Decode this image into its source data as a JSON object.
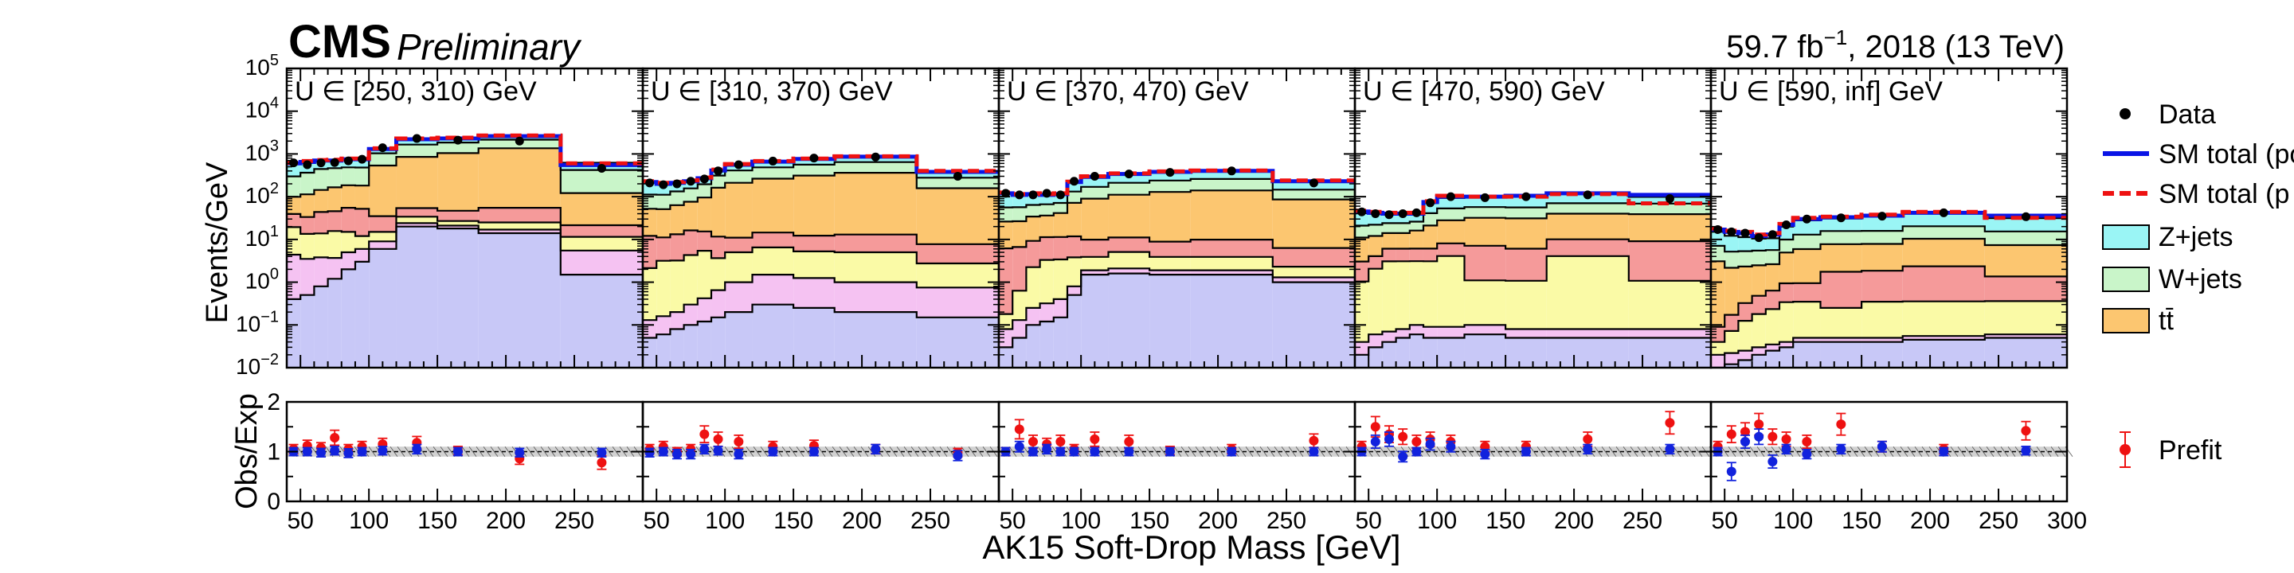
{
  "header": {
    "experiment": "CMS",
    "status": "Preliminary",
    "lumi_value": "59.7 fb",
    "lumi_exp": "−1",
    "lumi_rest": ", 2018 (13 TeV)"
  },
  "axes": {
    "ylabel_top": "Events/GeV",
    "ylabel_bottom": "Obs/Exp",
    "xlabel": "AK15 Soft-Drop Mass [GeV]",
    "top_yticks": [
      {
        "base": "10",
        "exp": "−2"
      },
      {
        "base": "10",
        "exp": "−1"
      },
      {
        "base": "10",
        "exp": "0"
      },
      {
        "base": "10",
        "exp": "1"
      },
      {
        "base": "10",
        "exp": "2"
      },
      {
        "base": "10",
        "exp": "3"
      },
      {
        "base": "10",
        "exp": "4"
      },
      {
        "base": "10",
        "exp": "5"
      }
    ],
    "ratio_yticks": [
      "0",
      "1",
      "2"
    ],
    "xticks_panel": [
      "50",
      "100",
      "150",
      "200",
      "250"
    ],
    "xticks_last": [
      "50",
      "100",
      "150",
      "200",
      "250",
      "300"
    ]
  },
  "legend": {
    "top": [
      {
        "label": "Data",
        "kind": "dot"
      },
      {
        "label": "SM total (po",
        "kind": "solid-line"
      },
      {
        "label": "SM total (p",
        "kind": "dashed-line"
      },
      {
        "label": "Z+jets",
        "kind": "box"
      },
      {
        "label": "W+jets",
        "kind": "box"
      },
      {
        "label": "tt̄",
        "kind": "box"
      }
    ],
    "bottom": [
      {
        "label": "Prefit",
        "kind": "errorbar"
      }
    ]
  },
  "colors": {
    "znunu": "#9af5f5",
    "wjets": "#c9f5c9",
    "ttbar": "#fcc670",
    "red_comp": "#f59a9a",
    "yellow_comp": "#fafaa6",
    "pink_comp": "#f5c2f2",
    "lavender_comp": "#c8c8f7",
    "postfit_line": "#0a14e6",
    "prefit_line": "#ee1111",
    "data": "#000000",
    "ratio_prefit": "#ee1111",
    "ratio_postfit": "#1122dd",
    "uncertainty_band": "#9a9a9a"
  },
  "chart_data": {
    "type": "bar",
    "subtype": "stacked-histogram-with-ratio",
    "y_scale": "log",
    "ylim": [
      0.01,
      100000
    ],
    "ratio_ylim": [
      0,
      2
    ],
    "xlim_panel": [
      40,
      300
    ],
    "bin_edges": [
      40,
      50,
      60,
      70,
      80,
      90,
      100,
      120,
      150,
      180,
      240,
      300
    ],
    "stack_order": [
      "lavender_comp",
      "pink_comp",
      "yellow_comp",
      "red_comp",
      "ttbar",
      "wjets",
      "znunu"
    ],
    "panels": [
      {
        "label": "U ∈ [250, 310) GeV",
        "stack": {
          "lavender_comp": [
            0.4,
            0.5,
            0.8,
            1.2,
            2,
            3,
            6,
            20,
            18,
            14,
            1.5
          ],
          "pink_comp": [
            4,
            3,
            3,
            2.5,
            3,
            3,
            3,
            4,
            3,
            3,
            4
          ],
          "yellow_comp": [
            15,
            10,
            10,
            12,
            10,
            6,
            6,
            10,
            6,
            8,
            6
          ],
          "red_comp": [
            20,
            20,
            30,
            30,
            40,
            40,
            20,
            20,
            20,
            30,
            10
          ],
          "ttbar": [
            60,
            80,
            100,
            120,
            130,
            130,
            500,
            800,
            1000,
            1300,
            100
          ],
          "wjets": [
            200,
            250,
            300,
            300,
            300,
            300,
            500,
            800,
            800,
            800,
            300
          ],
          "znunu": [
            300,
            250,
            250,
            200,
            230,
            230,
            300,
            500,
            400,
            500,
            200
          ]
        },
        "postfit_total": [
          600,
          650,
          700,
          700,
          750,
          750,
          1300,
          2200,
          2300,
          2600,
          550
        ],
        "prefit_total": [
          620,
          680,
          720,
          730,
          780,
          780,
          1350,
          2300,
          2400,
          2700,
          600
        ],
        "data": [
          620,
          560,
          620,
          630,
          690,
          750,
          1400,
          2300,
          2100,
          2000,
          460
        ],
        "ratio_prefit": [
          1.05,
          1.12,
          1.08,
          1.28,
          1.05,
          1.1,
          1.15,
          1.18,
          1.02,
          0.86,
          0.78
        ],
        "ratio_postfit": [
          1.0,
          1.0,
          0.98,
          1.02,
          0.97,
          1.0,
          1.02,
          1.05,
          1.0,
          0.98,
          0.98
        ]
      },
      {
        "label": "U ∈ [310, 370) GeV",
        "stack": {
          "lavender_comp": [
            0.05,
            0.06,
            0.08,
            0.1,
            0.12,
            0.15,
            0.2,
            0.3,
            0.25,
            0.2,
            0.15
          ],
          "pink_comp": [
            0.08,
            0.1,
            0.12,
            0.2,
            0.3,
            0.5,
            0.8,
            1.2,
            1.0,
            0.8,
            0.6
          ],
          "yellow_comp": [
            2,
            3,
            3,
            4,
            5,
            3,
            4,
            5,
            4,
            4,
            2
          ],
          "red_comp": [
            10,
            8,
            10,
            12,
            10,
            8,
            6,
            8,
            7,
            8,
            5
          ],
          "ttbar": [
            40,
            40,
            50,
            60,
            80,
            150,
            200,
            250,
            300,
            350,
            150
          ],
          "wjets": [
            60,
            60,
            70,
            80,
            100,
            150,
            200,
            220,
            250,
            280,
            120
          ],
          "znunu": [
            100,
            90,
            80,
            80,
            80,
            100,
            150,
            180,
            200,
            220,
            100
          ]
        },
        "postfit_total": [
          220,
          200,
          210,
          230,
          270,
          410,
          560,
          660,
          760,
          860,
          380
        ],
        "prefit_total": [
          230,
          210,
          220,
          240,
          280,
          430,
          580,
          680,
          780,
          880,
          400
        ],
        "data": [
          210,
          190,
          200,
          230,
          260,
          400,
          560,
          680,
          800,
          850,
          300
        ],
        "ratio_prefit": [
          1.05,
          1.1,
          1.0,
          1.05,
          1.35,
          1.25,
          1.2,
          1.1,
          1.12,
          1.05,
          0.98
        ],
        "ratio_postfit": [
          0.98,
          1.0,
          0.95,
          0.95,
          1.05,
          1.02,
          0.95,
          1.0,
          1.0,
          1.05,
          0.92
        ]
      },
      {
        "label": "U ∈ [370, 470) GeV",
        "stack": {
          "lavender_comp": [
            0.03,
            0.05,
            0.1,
            0.12,
            0.15,
            0.5,
            1.5,
            1.6,
            1.5,
            1.5,
            1.0
          ],
          "pink_comp": [
            0.05,
            0.08,
            0.15,
            0.2,
            0.25,
            0.3,
            0.4,
            0.5,
            0.4,
            0.4,
            0.3
          ],
          "yellow_comp": [
            0.1,
            0.5,
            2,
            3,
            3,
            3,
            2,
            3,
            2,
            2,
            1
          ],
          "red_comp": [
            6,
            6,
            7,
            8,
            8,
            8,
            6,
            6,
            5,
            6,
            4
          ],
          "ttbar": [
            20,
            20,
            25,
            25,
            30,
            60,
            80,
            100,
            120,
            130,
            80
          ],
          "wjets": [
            30,
            30,
            30,
            30,
            30,
            60,
            80,
            100,
            110,
            120,
            60
          ],
          "znunu": [
            60,
            50,
            50,
            45,
            45,
            90,
            120,
            130,
            150,
            160,
            80
          ]
        },
        "postfit_total": [
          120,
          110,
          115,
          110,
          115,
          220,
          290,
          340,
          380,
          400,
          230
        ],
        "prefit_total": [
          125,
          115,
          120,
          115,
          120,
          225,
          300,
          350,
          390,
          410,
          240
        ],
        "data": [
          120,
          110,
          110,
          120,
          110,
          230,
          300,
          340,
          370,
          400,
          210
        ],
        "ratio_prefit": [
          1.0,
          1.45,
          1.2,
          1.15,
          1.2,
          1.05,
          1.25,
          1.2,
          1.02,
          1.05,
          1.22
        ],
        "ratio_postfit": [
          1.0,
          1.1,
          1.0,
          1.05,
          1.0,
          1.0,
          1.0,
          1.0,
          1.0,
          1.0,
          1.0
        ]
      },
      {
        "label": "U ∈ [470, 590) GeV",
        "stack": {
          "lavender_comp": [
            0.02,
            0.03,
            0.04,
            0.05,
            0.06,
            0.05,
            0.05,
            0.06,
            0.05,
            0.05,
            0.05
          ],
          "pink_comp": [
            0.02,
            0.03,
            0.03,
            0.03,
            0.04,
            0.04,
            0.04,
            0.04,
            0.03,
            0.03,
            0.03
          ],
          "yellow_comp": [
            1,
            2,
            3,
            3,
            3,
            3,
            4,
            1,
            1,
            4,
            1
          ],
          "red_comp": [
            2,
            2,
            3,
            3,
            3,
            3,
            4,
            6,
            5,
            6,
            8
          ],
          "ttbar": [
            8,
            8,
            8,
            8,
            10,
            15,
            20,
            25,
            25,
            30,
            30
          ],
          "wjets": [
            10,
            10,
            10,
            10,
            10,
            20,
            25,
            25,
            25,
            30,
            30
          ],
          "znunu": [
            20,
            18,
            16,
            15,
            15,
            30,
            40,
            40,
            45,
            50,
            30
          ]
        },
        "postfit_total": [
          45,
          42,
          40,
          40,
          40,
          75,
          100,
          100,
          105,
          120,
          110
        ],
        "prefit_total": [
          47,
          44,
          42,
          42,
          42,
          78,
          105,
          100,
          100,
          115,
          70
        ],
        "data": [
          44,
          40,
          38,
          40,
          42,
          72,
          100,
          95,
          100,
          110,
          90
        ],
        "ratio_prefit": [
          1.1,
          1.5,
          1.35,
          1.3,
          1.2,
          1.25,
          1.2,
          1.1,
          1.1,
          1.25,
          1.58
        ],
        "ratio_postfit": [
          1.0,
          1.2,
          1.25,
          0.9,
          1.0,
          1.15,
          1.1,
          0.95,
          1.0,
          1.05,
          1.05
        ]
      },
      {
        "label": "U ∈ [590, inf] GeV",
        "stack": {
          "lavender_comp": [
            0.01,
            0.012,
            0.015,
            0.02,
            0.025,
            0.03,
            0.04,
            0.04,
            0.04,
            0.045,
            0.05
          ],
          "pink_comp": [
            0.01,
            0.01,
            0.01,
            0.01,
            0.01,
            0.01,
            0.01,
            0.01,
            0.01,
            0.01,
            0.01
          ],
          "yellow_comp": [
            0.02,
            0.05,
            0.1,
            0.15,
            0.2,
            0.3,
            0.3,
            0.2,
            0.3,
            0.3,
            0.3
          ],
          "red_comp": [
            0.05,
            0.1,
            0.2,
            0.3,
            0.4,
            0.6,
            0.6,
            1.5,
            1.5,
            2,
            1
          ],
          "ttbar": [
            3,
            2,
            2,
            2,
            2,
            4,
            5,
            6,
            6,
            8,
            6
          ],
          "wjets": [
            4,
            3,
            3,
            3,
            3,
            5,
            7,
            8,
            8,
            10,
            8
          ],
          "znunu": [
            8,
            7,
            6,
            5,
            5,
            10,
            15,
            15,
            18,
            20,
            16
          ]
        },
        "postfit_total": [
          17,
          15,
          14,
          12,
          13,
          22,
          30,
          33,
          36,
          42,
          36
        ],
        "prefit_total": [
          18,
          16,
          15,
          13,
          14,
          23,
          32,
          34,
          38,
          44,
          32
        ],
        "data": [
          17,
          15,
          14,
          11,
          13,
          22,
          30,
          32,
          35,
          42,
          34
        ],
        "ratio_prefit": [
          1.1,
          1.35,
          1.4,
          1.55,
          1.3,
          1.25,
          1.2,
          1.55,
          1.1,
          1.05,
          1.42
        ],
        "ratio_postfit": [
          1.0,
          0.6,
          1.2,
          1.3,
          0.8,
          1.05,
          0.95,
          1.05,
          1.1,
          1.0,
          1.02
        ]
      }
    ]
  }
}
